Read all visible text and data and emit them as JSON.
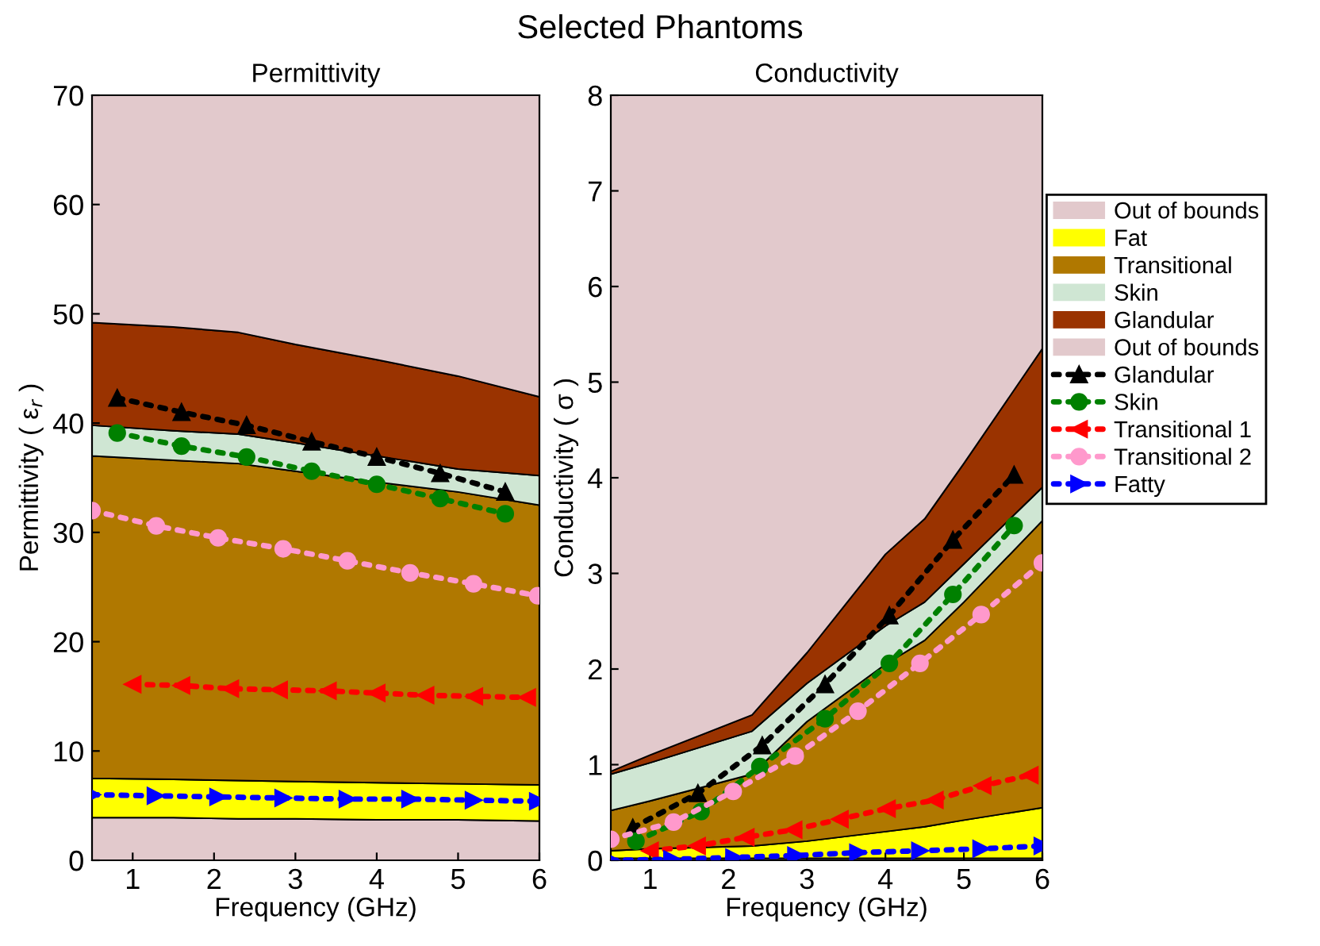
{
  "chart_data": [
    {
      "type": "area",
      "title": "Permittivity",
      "xlabel": "Frequency (GHz)",
      "ylabel": "Permittivity ( ε$_{r}$ )",
      "annotations": [
        "Selected Phantoms"
      ],
      "stacked": true,
      "line_style": "dotted",
      "xlim": [
        0.5,
        6
      ],
      "xticks": [
        1,
        2,
        3,
        4,
        5,
        6
      ],
      "ylim": [
        0,
        70
      ],
      "yticks": [
        0,
        10,
        20,
        30,
        40,
        50,
        60,
        70
      ],
      "grid": false,
      "legend": false,
      "series": [
        {
          "name": "Out of bounds",
          "color": "#e2c9cc",
          "x": [
            0.5,
            1.5,
            2.3,
            3,
            4,
            5,
            6
          ],
          "values": [
            3.9,
            3.9,
            3.8,
            3.8,
            3.7,
            3.7,
            3.6
          ]
        },
        {
          "color": "#ffff00",
          "x": [
            0.5,
            1.5,
            2.3,
            3,
            4,
            5,
            6
          ],
          "values": [
            3.6,
            3.5,
            3.5,
            3.4,
            3.4,
            3.3,
            3.3
          ]
        },
        {
          "color": "#b07800",
          "x": [
            0.5,
            1.5,
            2.3,
            3,
            4,
            5,
            6
          ],
          "values": [
            29.5,
            29.2,
            29.0,
            28.4,
            27.5,
            26.7,
            25.6
          ]
        },
        {
          "color": "#cfe6d3",
          "x": [
            0.5,
            1.5,
            2.3,
            3,
            4,
            5,
            6
          ],
          "values": [
            2.8,
            2.7,
            2.7,
            2.6,
            2.4,
            2.1,
            2.7
          ]
        },
        {
          "color": "#9a3300",
          "x": [
            0.5,
            1.5,
            2.3,
            3,
            4,
            5,
            6
          ],
          "values": [
            9.4,
            9.5,
            9.3,
            9.0,
            8.8,
            8.5,
            7.2
          ]
        },
        {
          "color": "#e2c9cc",
          "x": [
            0.5,
            1.5,
            2.3,
            3,
            4,
            5,
            6
          ],
          "values": [
            20.8,
            21.2,
            21.7,
            22.8,
            24.2,
            25.7,
            27.6
          ]
        },
        {
          "type": "line",
          "color": "#000000",
          "marker": "triangle",
          "x": [
            0.81,
            1.6,
            2.4,
            3.2,
            4.0,
            4.78,
            5.58
          ],
          "values": [
            42.3,
            41.0,
            39.8,
            38.3,
            36.9,
            35.4,
            33.7
          ]
        },
        {
          "type": "line",
          "color": "#008000",
          "marker": "circle",
          "x": [
            0.81,
            1.6,
            2.4,
            3.2,
            4.0,
            4.78,
            5.58
          ],
          "values": [
            39.1,
            37.9,
            36.9,
            35.6,
            34.4,
            33.1,
            31.7
          ]
        },
        {
          "type": "line",
          "color": "#ff0000",
          "marker": "triangle_left",
          "x": [
            1.0,
            1.6,
            2.2,
            2.8,
            3.4,
            4.0,
            4.6,
            5.2,
            5.85
          ],
          "values": [
            16.1,
            16.0,
            15.7,
            15.6,
            15.5,
            15.3,
            15.1,
            15.0,
            14.9
          ]
        },
        {
          "type": "line",
          "color": "#ff99cc",
          "marker": "circle",
          "x": [
            0.5,
            1.29,
            2.05,
            2.85,
            3.64,
            4.41,
            5.19,
            5.98
          ],
          "values": [
            32.0,
            30.6,
            29.5,
            28.5,
            27.4,
            26.3,
            25.3,
            24.2
          ]
        },
        {
          "type": "line",
          "color": "#0000ff",
          "marker": "triangle_right",
          "x": [
            0.5,
            1.28,
            2.05,
            2.85,
            3.64,
            4.41,
            5.19,
            5.98
          ],
          "values": [
            6.0,
            5.9,
            5.8,
            5.7,
            5.6,
            5.6,
            5.5,
            5.4
          ]
        }
      ]
    },
    {
      "type": "area",
      "title": "Conductivity",
      "xlabel": "Frequency (GHz)",
      "ylabel": "Conductivity ( σ )",
      "stacked": true,
      "line_style": "dotted",
      "xlim": [
        0.5,
        6
      ],
      "xticks": [
        1,
        2,
        3,
        4,
        5,
        6
      ],
      "ylim": [
        0,
        8
      ],
      "yticks": [
        0,
        1,
        2,
        3,
        4,
        5,
        6,
        7,
        8
      ],
      "grid": false,
      "legend": "right",
      "series": [
        {
          "color": "#e2c9cc",
          "x": [
            0.5,
            1,
            2.3,
            3,
            4,
            4.5,
            5,
            6
          ],
          "values": [
            0.02,
            0.02,
            0.02,
            0.02,
            0.02,
            0.02,
            0.02,
            0.02
          ]
        },
        {
          "name": "Fat",
          "color": "#ffff00",
          "x": [
            0.5,
            1,
            2.3,
            3,
            4,
            4.5,
            5,
            6
          ],
          "values": [
            0.08,
            0.1,
            0.13,
            0.18,
            0.28,
            0.33,
            0.4,
            0.53
          ]
        },
        {
          "name": "Transitional",
          "color": "#b07800",
          "x": [
            0.5,
            1,
            2.3,
            3,
            4,
            4.5,
            5,
            6
          ],
          "values": [
            0.42,
            0.5,
            0.75,
            1.25,
            1.75,
            1.95,
            2.28,
            3.0
          ]
        },
        {
          "name": "Skin",
          "color": "#cfe6d3",
          "x": [
            0.5,
            1,
            2.3,
            3,
            4,
            4.5,
            5,
            6
          ],
          "values": [
            0.38,
            0.4,
            0.45,
            0.4,
            0.4,
            0.4,
            0.4,
            0.35
          ]
        },
        {
          "name": "Glandular",
          "color": "#9a3300",
          "x": [
            0.5,
            1,
            2.3,
            3,
            4,
            4.5,
            5,
            6
          ],
          "values": [
            0.03,
            0.08,
            0.17,
            0.32,
            0.75,
            0.87,
            1.05,
            1.45
          ]
        },
        {
          "name": "Out of bounds",
          "color": "#e2c9cc",
          "x": [
            0.5,
            1,
            2.3,
            3,
            4,
            4.5,
            5,
            6
          ],
          "values": [
            7.07,
            6.9,
            6.48,
            5.83,
            4.8,
            4.43,
            3.85,
            2.65
          ]
        },
        {
          "type": "line",
          "name": "Glandular",
          "color": "#000000",
          "marker": "triangle",
          "x": [
            0.78,
            1.61,
            2.43,
            3.23,
            4.05,
            4.86,
            5.64
          ],
          "values": [
            0.34,
            0.7,
            1.2,
            1.84,
            2.56,
            3.35,
            4.03
          ]
        },
        {
          "type": "line",
          "name": "Skin",
          "color": "#008000",
          "marker": "circle",
          "x": [
            0.82,
            1.65,
            2.4,
            3.23,
            4.05,
            4.86,
            5.64
          ],
          "values": [
            0.2,
            0.51,
            0.98,
            1.48,
            2.06,
            2.78,
            3.5
          ]
        },
        {
          "type": "line",
          "name": "Transitional 1",
          "color": "#ff0000",
          "marker": "triangle_left",
          "x": [
            1.0,
            1.6,
            2.22,
            2.83,
            3.42,
            4.02,
            4.63,
            5.24,
            5.84
          ],
          "values": [
            0.1,
            0.15,
            0.24,
            0.32,
            0.43,
            0.54,
            0.63,
            0.78,
            0.89
          ]
        },
        {
          "type": "line",
          "name": "Transitional 2",
          "color": "#ff99cc",
          "marker": "circle",
          "x": [
            0.5,
            1.3,
            2.06,
            2.85,
            3.65,
            4.44,
            5.22,
            6.0
          ],
          "values": [
            0.22,
            0.4,
            0.72,
            1.09,
            1.56,
            2.06,
            2.57,
            3.11
          ]
        },
        {
          "type": "line",
          "name": "Fatty",
          "color": "#0000ff",
          "marker": "triangle_right",
          "x": [
            0.5,
            1.28,
            2.07,
            2.86,
            3.65,
            4.44,
            5.22,
            6.0
          ],
          "values": [
            0.0,
            0.01,
            0.03,
            0.05,
            0.08,
            0.1,
            0.12,
            0.15
          ]
        }
      ]
    }
  ]
}
